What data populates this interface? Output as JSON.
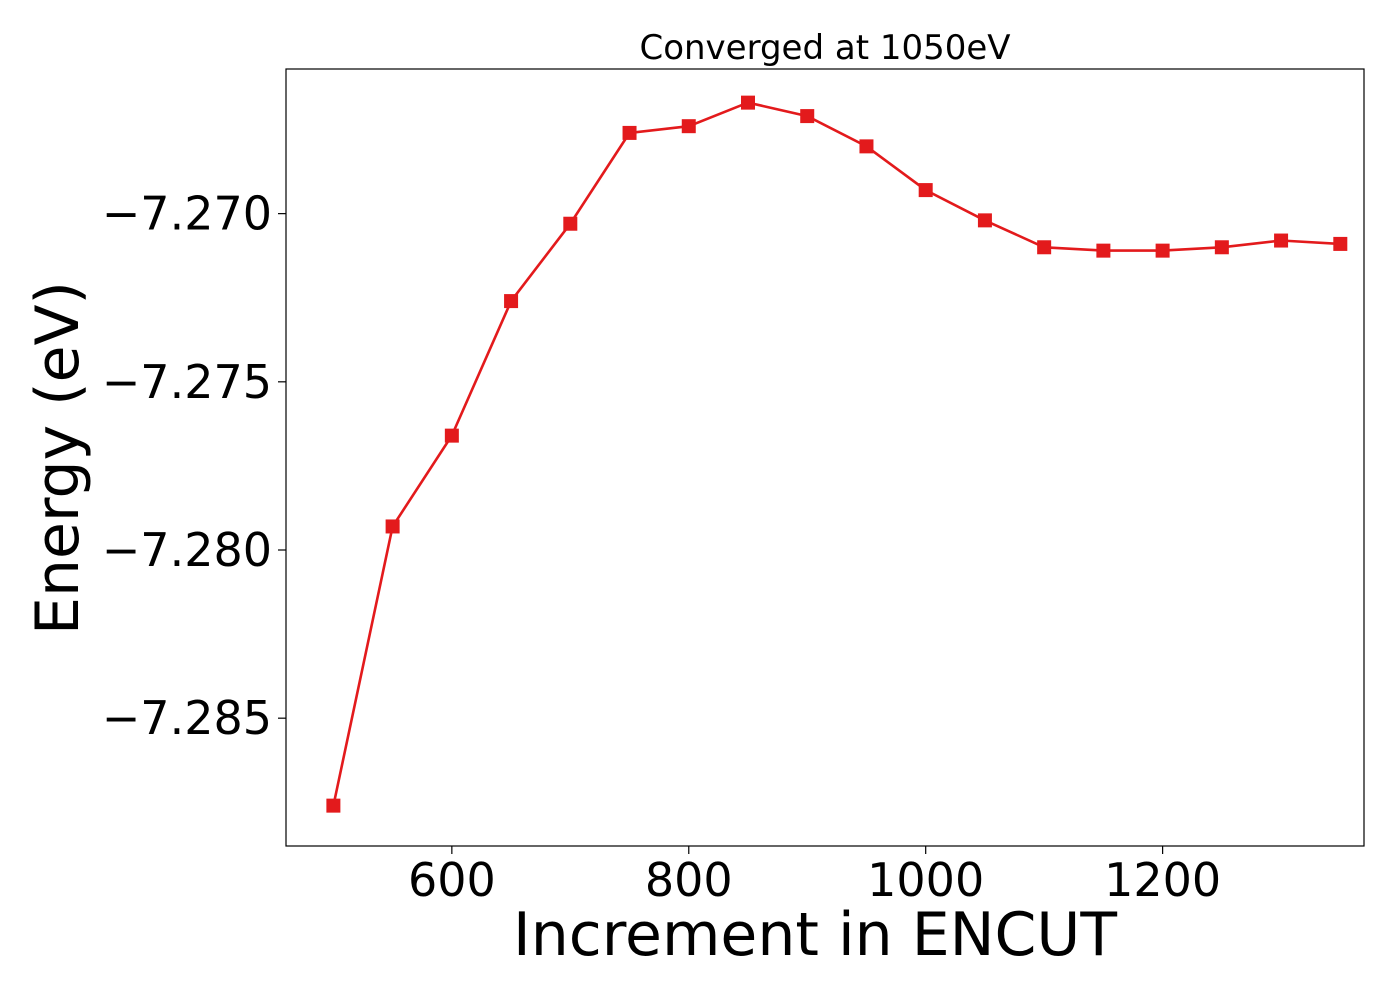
{
  "chart_data": {
    "type": "line",
    "title": "Converged at 1050eV",
    "xlabel": "Increment in ENCUT",
    "ylabel": "Energy (eV)",
    "xlim": [
      460,
      1370
    ],
    "ylim": [
      -7.2888,
      -7.2657
    ],
    "xticks": [
      600,
      800,
      1000,
      1200
    ],
    "xtick_labels": [
      "600",
      "800",
      "1000",
      "1200"
    ],
    "yticks": [
      -7.27,
      -7.275,
      -7.28,
      -7.285
    ],
    "ytick_labels": [
      "−7.270",
      "−7.275",
      "−7.280",
      "−7.285"
    ],
    "grid": false,
    "series": [
      {
        "color": "#e31a1c",
        "marker": "square",
        "x": [
          500,
          550,
          600,
          650,
          700,
          750,
          800,
          850,
          900,
          950,
          1000,
          1050,
          1100,
          1150,
          1200,
          1250,
          1300,
          1350
        ],
        "y": [
          -7.2876,
          -7.2793,
          -7.2766,
          -7.2726,
          -7.2703,
          -7.2676,
          -7.2674,
          -7.2667,
          -7.2671,
          -7.268,
          -7.2693,
          -7.2702,
          -7.271,
          -7.2711,
          -7.2711,
          -7.271,
          -7.2708,
          -7.2709
        ]
      }
    ]
  }
}
